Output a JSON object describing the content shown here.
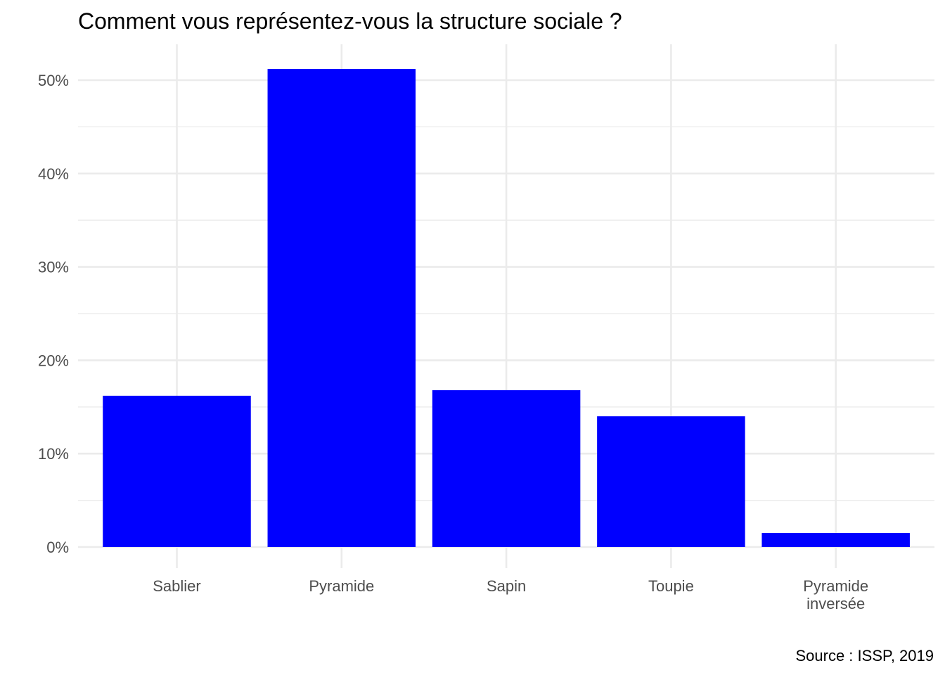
{
  "chart_data": {
    "type": "bar",
    "title": "Comment vous représentez-vous la structure sociale ?",
    "caption": "Source : ISSP, 2019",
    "xlabel": "",
    "ylabel": "",
    "categories": [
      [
        "Sablier"
      ],
      [
        "Pyramide"
      ],
      [
        "Sapin"
      ],
      [
        "Toupie"
      ],
      [
        "Pyramide",
        "inversée"
      ]
    ],
    "values": [
      16.2,
      51.2,
      16.8,
      14.0,
      1.5
    ],
    "y_ticks": [
      "0%",
      "10%",
      "20%",
      "30%",
      "40%",
      "50%"
    ],
    "y_tick_values": [
      0,
      10,
      20,
      30,
      40,
      50
    ],
    "ylim": [
      0,
      53.8
    ],
    "bar_color": "#0000ff",
    "grid": true,
    "legend": "none"
  }
}
